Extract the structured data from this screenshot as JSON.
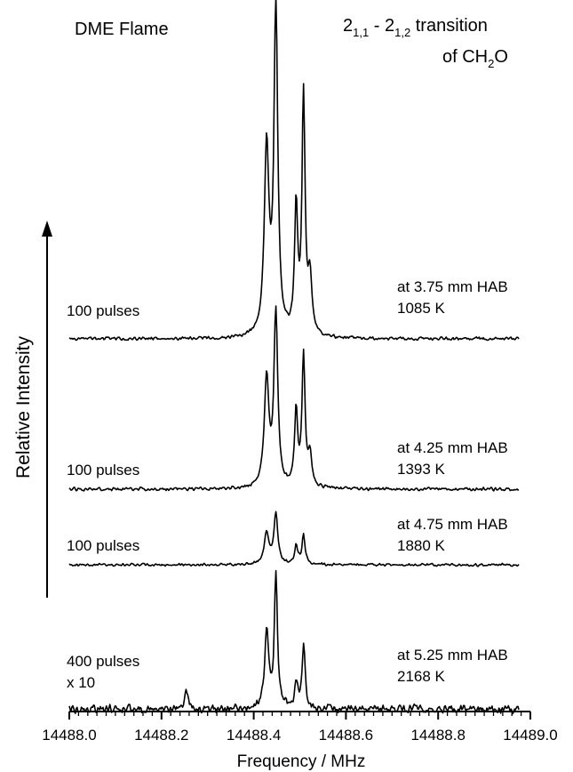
{
  "chart_data": {
    "type": "line",
    "title_left": "DME Flame",
    "title_right": {
      "line1": {
        "a": "2",
        "a_sub": "1,1",
        "mid": " - 2",
        "b_sub": "1,2",
        "c": " transition"
      },
      "line2": {
        "a": "of CH",
        "sub": "2",
        "b": "O"
      }
    },
    "xlabel": "Frequency / MHz",
    "ylabel": "Relative Intensity",
    "xlim": [
      14488.0,
      14489.0
    ],
    "xticks": [
      "14488.0",
      "14488.2",
      "14488.4",
      "14488.6",
      "14488.8",
      "14489.0"
    ],
    "series": [
      {
        "pulses": "100 pulses",
        "position": "at 3.75 mm HAB",
        "temperature": "1085 K",
        "peaks": [
          {
            "x": 14488.428,
            "h": 1.0,
            "w": 0.006
          },
          {
            "x": 14488.448,
            "h": 1.75,
            "w": 0.005
          },
          {
            "x": 14488.492,
            "h": 0.68,
            "w": 0.004
          },
          {
            "x": 14488.508,
            "h": 1.28,
            "w": 0.004
          },
          {
            "x": 14488.522,
            "h": 0.3,
            "w": 0.005
          }
        ]
      },
      {
        "pulses": "100 pulses",
        "position": "at 4.25 mm HAB",
        "temperature": "1393 K",
        "peaks": [
          {
            "x": 14488.428,
            "h": 0.58,
            "w": 0.006
          },
          {
            "x": 14488.448,
            "h": 0.93,
            "w": 0.005
          },
          {
            "x": 14488.492,
            "h": 0.4,
            "w": 0.004
          },
          {
            "x": 14488.508,
            "h": 0.7,
            "w": 0.004
          },
          {
            "x": 14488.522,
            "h": 0.16,
            "w": 0.005
          }
        ]
      },
      {
        "pulses": "100 pulses",
        "position": "at 4.75 mm HAB",
        "temperature": "1880 K",
        "peaks": [
          {
            "x": 14488.428,
            "h": 0.17,
            "w": 0.006
          },
          {
            "x": 14488.448,
            "h": 0.27,
            "w": 0.005
          },
          {
            "x": 14488.492,
            "h": 0.1,
            "w": 0.004
          },
          {
            "x": 14488.508,
            "h": 0.16,
            "w": 0.004
          }
        ]
      },
      {
        "pulses": "400 pulses",
        "scale": "x 10",
        "position": "at 5.25 mm HAB",
        "temperature": "2168 K",
        "peaks": [
          {
            "x": 14488.254,
            "h": 0.12,
            "w": 0.004
          },
          {
            "x": 14488.428,
            "h": 0.47,
            "w": 0.005
          },
          {
            "x": 14488.448,
            "h": 0.81,
            "w": 0.004
          },
          {
            "x": 14488.492,
            "h": 0.16,
            "w": 0.004
          },
          {
            "x": 14488.508,
            "h": 0.37,
            "w": 0.004
          }
        ]
      }
    ]
  }
}
